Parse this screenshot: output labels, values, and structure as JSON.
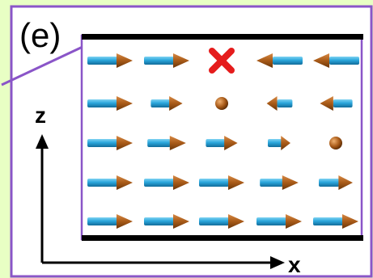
{
  "panel_label": "(e)",
  "axes": {
    "vertical": "z",
    "horizontal": "x"
  },
  "colors": {
    "background": "#e8ffc4",
    "panel": "#ffffff",
    "panel_border": "#8a55c8",
    "plate": "#000000",
    "arrow_shaft": "#2aa6dc",
    "arrow_head": "#a85a18",
    "marker": "#e51c1c"
  },
  "grid": {
    "columns": 5,
    "rows": 5,
    "cells": [
      [
        {
          "type": "arrow",
          "dir": "right",
          "len": 1.0
        },
        {
          "type": "arrow",
          "dir": "right",
          "len": 1.0
        },
        {
          "type": "cross"
        },
        {
          "type": "arrow",
          "dir": "left",
          "len": 1.0
        },
        {
          "type": "arrow",
          "dir": "left",
          "len": 1.0
        }
      ],
      [
        {
          "type": "arrow",
          "dir": "right",
          "len": 1.0
        },
        {
          "type": "arrow",
          "dir": "right",
          "len": 0.7
        },
        {
          "type": "dot"
        },
        {
          "type": "arrow",
          "dir": "left",
          "len": 0.55
        },
        {
          "type": "arrow",
          "dir": "left",
          "len": 0.7
        }
      ],
      [
        {
          "type": "arrow",
          "dir": "right",
          "len": 1.0
        },
        {
          "type": "arrow",
          "dir": "right",
          "len": 0.85
        },
        {
          "type": "arrow",
          "dir": "right",
          "len": 0.7
        },
        {
          "type": "arrow",
          "dir": "right",
          "len": 0.5
        },
        {
          "type": "dot"
        }
      ],
      [
        {
          "type": "arrow",
          "dir": "right",
          "len": 1.0
        },
        {
          "type": "arrow",
          "dir": "right",
          "len": 1.0
        },
        {
          "type": "arrow",
          "dir": "right",
          "len": 1.0
        },
        {
          "type": "arrow",
          "dir": "right",
          "len": 0.85
        },
        {
          "type": "arrow",
          "dir": "right",
          "len": 0.75
        }
      ],
      [
        {
          "type": "arrow",
          "dir": "right",
          "len": 1.0
        },
        {
          "type": "arrow",
          "dir": "right",
          "len": 1.0
        },
        {
          "type": "arrow",
          "dir": "right",
          "len": 1.0
        },
        {
          "type": "arrow",
          "dir": "right",
          "len": 1.0
        },
        {
          "type": "arrow",
          "dir": "right",
          "len": 1.0
        }
      ]
    ]
  }
}
